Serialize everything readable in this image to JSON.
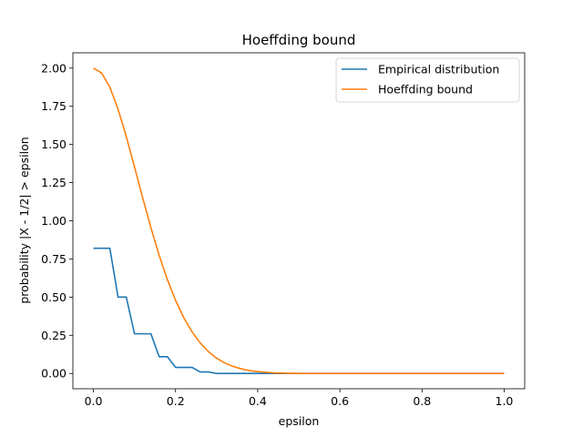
{
  "chart_data": {
    "type": "line",
    "title": "Hoeffding bound",
    "xlabel": "epsilon",
    "ylabel": "probability |X - 1/2| > epsilon",
    "xlim": [
      -0.05,
      1.05
    ],
    "ylim": [
      -0.1,
      2.1
    ],
    "xticks": [
      0.0,
      0.2,
      0.4,
      0.6,
      0.8,
      1.0
    ],
    "xtick_labels": [
      "0.0",
      "0.2",
      "0.4",
      "0.6",
      "0.8",
      "1.0"
    ],
    "yticks": [
      0.0,
      0.25,
      0.5,
      0.75,
      1.0,
      1.25,
      1.5,
      1.75,
      2.0
    ],
    "ytick_labels": [
      "0.00",
      "0.25",
      "0.50",
      "0.75",
      "1.00",
      "1.25",
      "1.50",
      "1.75",
      "2.00"
    ],
    "grid": false,
    "legend_position": "top-right",
    "series": [
      {
        "name": "Empirical distribution",
        "color": "#1f77b4",
        "x": [
          0.0,
          0.04,
          0.06,
          0.08,
          0.1,
          0.12,
          0.14,
          0.16,
          0.18,
          0.2,
          0.22,
          0.24,
          0.26,
          0.28,
          0.3,
          0.32,
          0.34,
          0.36,
          0.38,
          0.4,
          1.0
        ],
        "y": [
          0.82,
          0.82,
          0.5,
          0.5,
          0.26,
          0.26,
          0.26,
          0.11,
          0.11,
          0.04,
          0.04,
          0.04,
          0.01,
          0.01,
          0.0,
          0.0,
          0.0,
          0.0,
          0.0,
          0.0,
          0.0
        ]
      },
      {
        "name": "Hoeffding bound",
        "color": "#ff7f0e",
        "x": [
          0.0,
          0.02,
          0.04,
          0.06,
          0.08,
          0.1,
          0.12,
          0.14,
          0.16,
          0.18,
          0.2,
          0.22,
          0.24,
          0.26,
          0.28,
          0.3,
          0.32,
          0.34,
          0.36,
          0.38,
          0.4,
          0.44,
          0.48,
          0.52,
          0.6,
          0.7,
          0.8,
          0.9,
          1.0
        ],
        "y": [
          2.0,
          1.968,
          1.875,
          1.731,
          1.552,
          1.353,
          1.15,
          0.955,
          0.774,
          0.616,
          0.479,
          0.365,
          0.273,
          0.2,
          0.143,
          0.1,
          0.068,
          0.046,
          0.03,
          0.019,
          0.012,
          0.004,
          0.001,
          0.0,
          0.0,
          0.0,
          0.0,
          0.0,
          0.0
        ]
      }
    ]
  }
}
